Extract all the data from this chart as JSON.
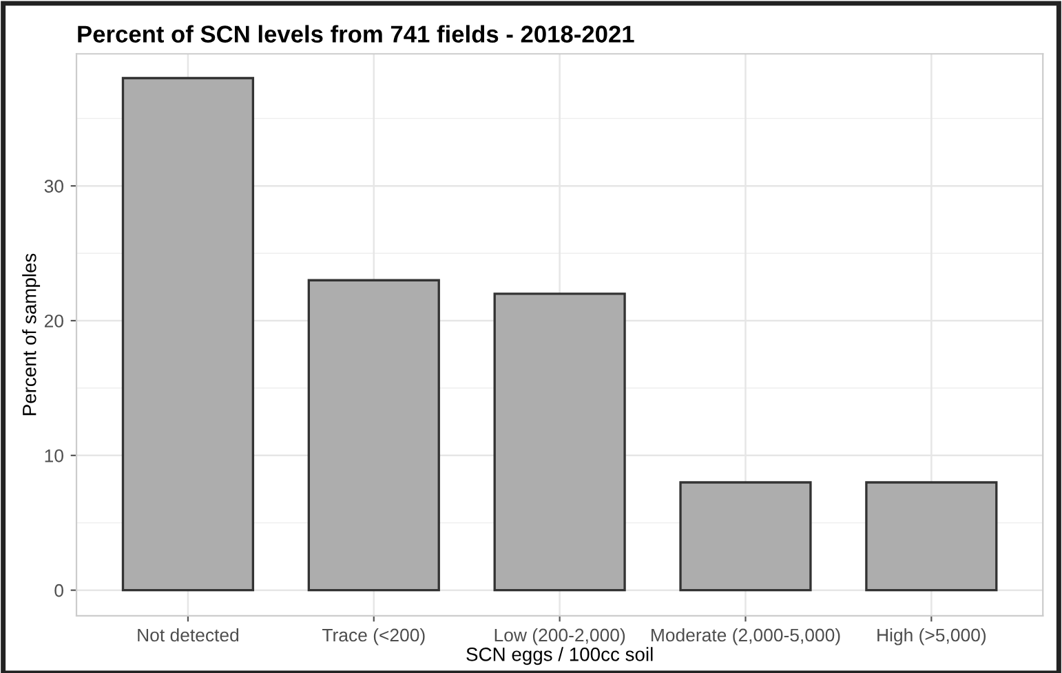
{
  "chart_data": {
    "type": "bar",
    "title": "Percent of SCN levels from 741 fields - 2018-2021",
    "xlabel": "SCN eggs / 100cc soil",
    "ylabel": "Percent of samples",
    "categories": [
      "Not detected",
      "Trace (<200)",
      "Low (200-2,000)",
      "Moderate (2,000-5,000)",
      "High (>5,000)"
    ],
    "values": [
      38,
      23,
      22,
      8,
      8
    ],
    "color": "#adadad",
    "ylim": [
      -1.9,
      39.8
    ],
    "yticks": [
      0,
      10,
      20,
      30
    ],
    "grid": true
  }
}
